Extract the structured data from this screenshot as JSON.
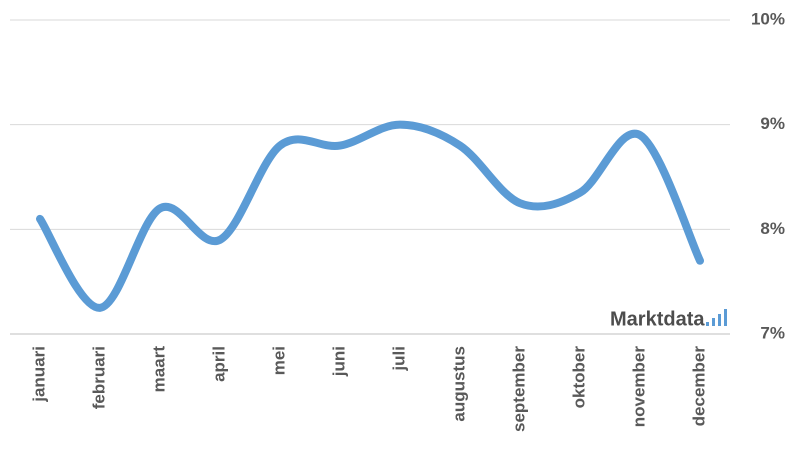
{
  "chart_data": {
    "type": "line",
    "categories": [
      "januari",
      "februari",
      "maart",
      "april",
      "mei",
      "juni",
      "juli",
      "augustus",
      "september",
      "oktober",
      "november",
      "december"
    ],
    "values": [
      8.1,
      7.25,
      8.2,
      7.9,
      8.8,
      8.8,
      9.0,
      8.8,
      8.25,
      8.35,
      8.9,
      7.7
    ],
    "color": "#5b9bd5",
    "ylim": [
      7,
      10
    ],
    "yticks": [
      {
        "value": 7,
        "label": "7%"
      },
      {
        "value": 8,
        "label": "8%"
      },
      {
        "value": 9,
        "label": "9%"
      },
      {
        "value": 10,
        "label": "10%"
      }
    ],
    "grid": true,
    "smooth": true,
    "watermark": "Marktdata"
  }
}
